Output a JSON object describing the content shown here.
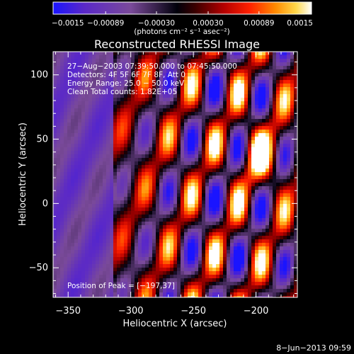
{
  "chart_data": {
    "type": "heatmap",
    "title": "Reconstructed RHESSI Image",
    "xlabel": "Heliocentric X (arcsec)",
    "ylabel": "Heliocentric Y (arcsec)",
    "xlim": [
      -362,
      -167
    ],
    "ylim": [
      -73,
      118
    ],
    "xticks": [
      {
        "value": -350,
        "label": "−350"
      },
      {
        "value": -300,
        "label": "−300"
      },
      {
        "value": -250,
        "label": "−250"
      },
      {
        "value": -200,
        "label": "−200"
      }
    ],
    "yticks": [
      {
        "value": -50,
        "label": "−50"
      },
      {
        "value": 0,
        "label": "0"
      },
      {
        "value": 50,
        "label": "50"
      },
      {
        "value": 100,
        "label": "100"
      }
    ],
    "colorbar": {
      "range": [
        -0.0015,
        0.0015
      ],
      "ticks": [
        {
          "value": -0.0015,
          "label": "−0.0015"
        },
        {
          "value": -0.00089,
          "label": "−0.00089"
        },
        {
          "value": -0.0003,
          "label": "−0.00030"
        },
        {
          "value": 0.0003,
          "label": "0.00030"
        },
        {
          "value": 0.00089,
          "label": "0.00089"
        },
        {
          "value": 0.0015,
          "label": "0.0015"
        }
      ],
      "unit": "(photons cm⁻² s⁻¹ asec⁻²)",
      "colors": [
        "#1a14ff",
        "#5a28c8",
        "#7a4a9a",
        "#00000a",
        "#3a0000",
        "#b40000",
        "#ff2000",
        "#ff8a00",
        "#ffd84a",
        "#ffffff"
      ]
    },
    "annotations": [
      "27−Aug−2003 07:39:50.000 to 07:45:50.000",
      "Detectors: 4F 5F 6F 7F 8F, Att 0",
      "Energy Range: 25.0 − 50.0 keV",
      "Clean     Total counts: 1.82E+05"
    ],
    "peak_label": "Position of Peak = [−197,37]",
    "peak": {
      "x": -197,
      "y": 37
    },
    "footer": "8−Jun−2013 09:59"
  }
}
